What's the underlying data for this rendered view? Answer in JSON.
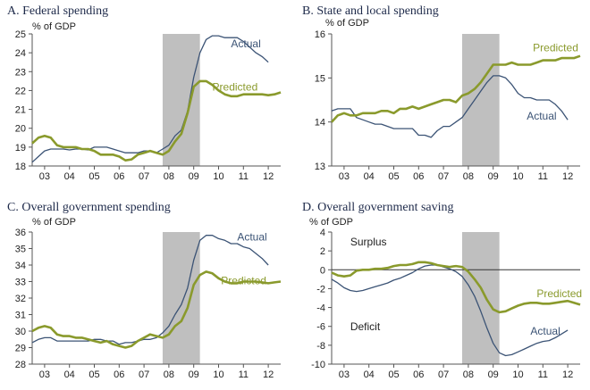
{
  "chart_data": [
    {
      "type": "line",
      "title": "A. Federal spending",
      "ylabel": "% of GDP",
      "ylim": [
        18,
        25
      ],
      "yticks": [
        18,
        19,
        20,
        21,
        22,
        23,
        24,
        25
      ],
      "xlim": [
        2002.5,
        2012.5
      ],
      "xticks": [
        "03",
        "04",
        "05",
        "06",
        "07",
        "08",
        "09",
        "10",
        "11",
        "12"
      ],
      "shade": [
        2007.75,
        2009.25
      ],
      "series": [
        {
          "name": "Actual",
          "color": "#3b5375",
          "label_pos": [
            2010.5,
            24.3
          ],
          "x": [
            2002.5,
            2002.75,
            2003,
            2003.25,
            2003.5,
            2003.75,
            2004,
            2004.25,
            2004.5,
            2004.75,
            2005,
            2005.25,
            2005.5,
            2005.75,
            2006,
            2006.25,
            2006.5,
            2006.75,
            2007,
            2007.25,
            2007.5,
            2007.75,
            2008,
            2008.25,
            2008.5,
            2008.75,
            2009,
            2009.25,
            2009.5,
            2009.75,
            2010,
            2010.25,
            2010.5,
            2010.75,
            2011,
            2011.25,
            2011.5,
            2011.75,
            2012
          ],
          "y": [
            18.2,
            18.5,
            18.8,
            18.9,
            18.9,
            18.9,
            18.85,
            18.9,
            18.9,
            18.85,
            19.0,
            19.0,
            19.0,
            18.9,
            18.8,
            18.7,
            18.7,
            18.7,
            18.8,
            18.8,
            18.7,
            18.9,
            19.1,
            19.6,
            19.9,
            20.9,
            22.7,
            24.0,
            24.7,
            24.9,
            24.9,
            24.8,
            24.8,
            24.8,
            24.6,
            24.3,
            24.0,
            23.8,
            23.5
          ]
        },
        {
          "name": "Predicted",
          "color": "#8a9a2c",
          "label_pos": [
            2009.75,
            22.0
          ],
          "x": [
            2002.5,
            2002.75,
            2003,
            2003.25,
            2003.5,
            2003.75,
            2004,
            2004.25,
            2004.5,
            2004.75,
            2005,
            2005.25,
            2005.5,
            2005.75,
            2006,
            2006.25,
            2006.5,
            2006.75,
            2007,
            2007.25,
            2007.5,
            2007.75,
            2008,
            2008.25,
            2008.5,
            2008.75,
            2009,
            2009.25,
            2009.5,
            2009.75,
            2010,
            2010.25,
            2010.5,
            2010.75,
            2011,
            2011.25,
            2011.5,
            2011.75,
            2012,
            2012.25,
            2012.5
          ],
          "y": [
            19.2,
            19.5,
            19.6,
            19.5,
            19.1,
            19.0,
            19.0,
            19.0,
            18.9,
            18.9,
            18.8,
            18.6,
            18.6,
            18.6,
            18.5,
            18.3,
            18.35,
            18.6,
            18.7,
            18.8,
            18.7,
            18.6,
            18.8,
            19.3,
            19.7,
            20.8,
            22.2,
            22.5,
            22.5,
            22.3,
            22.0,
            21.8,
            21.7,
            21.7,
            21.8,
            21.8,
            21.8,
            21.8,
            21.75,
            21.8,
            21.9
          ]
        }
      ]
    },
    {
      "type": "line",
      "title": "B. State and local spending",
      "ylabel": "% of GDP",
      "ylim": [
        13,
        16
      ],
      "yticks": [
        13,
        14,
        15,
        16
      ],
      "xlim": [
        2002.5,
        2012.5
      ],
      "xticks": [
        "03",
        "04",
        "05",
        "06",
        "07",
        "08",
        "09",
        "10",
        "11",
        "12"
      ],
      "shade": [
        2007.75,
        2009.25
      ],
      "series": [
        {
          "name": "Actual",
          "color": "#3b5375",
          "label_pos": [
            2010.35,
            14.05
          ],
          "x": [
            2002.5,
            2002.75,
            2003,
            2003.25,
            2003.5,
            2003.75,
            2004,
            2004.25,
            2004.5,
            2004.75,
            2005,
            2005.25,
            2005.5,
            2005.75,
            2006,
            2006.25,
            2006.5,
            2006.75,
            2007,
            2007.25,
            2007.5,
            2007.75,
            2008,
            2008.25,
            2008.5,
            2008.75,
            2009,
            2009.25,
            2009.5,
            2009.75,
            2010,
            2010.25,
            2010.5,
            2010.75,
            2011,
            2011.25,
            2011.5,
            2011.75,
            2012
          ],
          "y": [
            14.25,
            14.3,
            14.3,
            14.3,
            14.1,
            14.05,
            14.0,
            13.95,
            13.95,
            13.9,
            13.85,
            13.85,
            13.85,
            13.85,
            13.7,
            13.7,
            13.65,
            13.8,
            13.9,
            13.9,
            14.0,
            14.1,
            14.3,
            14.5,
            14.7,
            14.9,
            15.05,
            15.05,
            15.0,
            14.85,
            14.65,
            14.55,
            14.55,
            14.5,
            14.5,
            14.5,
            14.4,
            14.25,
            14.05
          ]
        },
        {
          "name": "Predicted",
          "color": "#8a9a2c",
          "label_pos": [
            2010.6,
            15.6
          ],
          "x": [
            2002.5,
            2002.75,
            2003,
            2003.25,
            2003.5,
            2003.75,
            2004,
            2004.25,
            2004.5,
            2004.75,
            2005,
            2005.25,
            2005.5,
            2005.75,
            2006,
            2006.25,
            2006.5,
            2006.75,
            2007,
            2007.25,
            2007.5,
            2007.75,
            2008,
            2008.25,
            2008.5,
            2008.75,
            2009,
            2009.25,
            2009.5,
            2009.75,
            2010,
            2010.25,
            2010.5,
            2010.75,
            2011,
            2011.25,
            2011.5,
            2011.75,
            2012,
            2012.25,
            2012.5
          ],
          "y": [
            14.0,
            14.15,
            14.2,
            14.15,
            14.15,
            14.2,
            14.2,
            14.2,
            14.25,
            14.25,
            14.2,
            14.3,
            14.3,
            14.35,
            14.3,
            14.35,
            14.4,
            14.45,
            14.5,
            14.5,
            14.45,
            14.6,
            14.65,
            14.75,
            14.9,
            15.1,
            15.3,
            15.3,
            15.3,
            15.35,
            15.3,
            15.3,
            15.3,
            15.35,
            15.4,
            15.4,
            15.4,
            15.45,
            15.45,
            15.45,
            15.5
          ]
        }
      ]
    },
    {
      "type": "line",
      "title": "C. Overall government spending",
      "ylabel": "% of GDP",
      "ylim": [
        28,
        36
      ],
      "yticks": [
        28,
        29,
        30,
        31,
        32,
        33,
        34,
        35,
        36
      ],
      "xlim": [
        2002.5,
        2012.5
      ],
      "xticks": [
        "03",
        "04",
        "05",
        "06",
        "07",
        "08",
        "09",
        "10",
        "11",
        "12"
      ],
      "shade": [
        2007.75,
        2009.25
      ],
      "series": [
        {
          "name": "Actual",
          "color": "#3b5375",
          "label_pos": [
            2010.75,
            35.5
          ],
          "x": [
            2002.5,
            2002.75,
            2003,
            2003.25,
            2003.5,
            2003.75,
            2004,
            2004.25,
            2004.5,
            2004.75,
            2005,
            2005.25,
            2005.5,
            2005.75,
            2006,
            2006.25,
            2006.5,
            2006.75,
            2007,
            2007.25,
            2007.5,
            2007.75,
            2008,
            2008.25,
            2008.5,
            2008.75,
            2009,
            2009.25,
            2009.5,
            2009.75,
            2010,
            2010.25,
            2010.5,
            2010.75,
            2011,
            2011.25,
            2011.5,
            2011.75,
            2012
          ],
          "y": [
            29.3,
            29.5,
            29.6,
            29.6,
            29.4,
            29.4,
            29.4,
            29.4,
            29.4,
            29.4,
            29.5,
            29.5,
            29.4,
            29.4,
            29.2,
            29.3,
            29.3,
            29.4,
            29.5,
            29.5,
            29.6,
            29.9,
            30.3,
            31.0,
            31.6,
            32.6,
            34.3,
            35.5,
            35.8,
            35.8,
            35.6,
            35.5,
            35.3,
            35.3,
            35.1,
            35.0,
            34.7,
            34.4,
            34.0
          ]
        },
        {
          "name": "Predicted",
          "color": "#8a9a2c",
          "label_pos": [
            2010.1,
            32.85
          ],
          "x": [
            2002.5,
            2002.75,
            2003,
            2003.25,
            2003.5,
            2003.75,
            2004,
            2004.25,
            2004.5,
            2004.75,
            2005,
            2005.25,
            2005.5,
            2005.75,
            2006,
            2006.25,
            2006.5,
            2006.75,
            2007,
            2007.25,
            2007.5,
            2007.75,
            2008,
            2008.25,
            2008.5,
            2008.75,
            2009,
            2009.25,
            2009.5,
            2009.75,
            2010,
            2010.25,
            2010.5,
            2010.75,
            2011,
            2011.25,
            2011.5,
            2011.75,
            2012,
            2012.25,
            2012.5
          ],
          "y": [
            30.0,
            30.2,
            30.3,
            30.2,
            29.8,
            29.7,
            29.7,
            29.6,
            29.6,
            29.5,
            29.4,
            29.3,
            29.4,
            29.2,
            29.1,
            29.0,
            29.1,
            29.4,
            29.6,
            29.8,
            29.7,
            29.6,
            29.8,
            30.3,
            30.6,
            31.4,
            32.8,
            33.4,
            33.6,
            33.5,
            33.2,
            33.0,
            32.9,
            32.9,
            33.0,
            33.0,
            33.0,
            32.95,
            32.9,
            32.95,
            33.0
          ]
        }
      ]
    },
    {
      "type": "line",
      "title": "D. Overall government saving",
      "ylabel": "% of GDP",
      "ylim": [
        -10,
        4
      ],
      "yticks": [
        -10,
        -8,
        -6,
        -4,
        -2,
        0,
        2,
        4
      ],
      "xlim": [
        2002.5,
        2012.5
      ],
      "xticks": [
        "03",
        "04",
        "05",
        "06",
        "07",
        "08",
        "09",
        "10",
        "11",
        "12"
      ],
      "shade": [
        2007.75,
        2009.25
      ],
      "zero_line": true,
      "annotations": [
        {
          "text": "Surplus",
          "pos": [
            2003.25,
            2.6
          ]
        },
        {
          "text": "Deficit",
          "pos": [
            2003.25,
            -6.4
          ]
        }
      ],
      "series": [
        {
          "name": "Actual",
          "color": "#3b5375",
          "label_pos": [
            2010.5,
            -6.9
          ],
          "x": [
            2002.5,
            2002.75,
            2003,
            2003.25,
            2003.5,
            2003.75,
            2004,
            2004.25,
            2004.5,
            2004.75,
            2005,
            2005.25,
            2005.5,
            2005.75,
            2006,
            2006.25,
            2006.5,
            2006.75,
            2007,
            2007.25,
            2007.5,
            2007.75,
            2008,
            2008.25,
            2008.5,
            2008.75,
            2009,
            2009.25,
            2009.5,
            2009.75,
            2010,
            2010.25,
            2010.5,
            2010.75,
            2011,
            2011.25,
            2011.5,
            2011.75,
            2012
          ],
          "y": [
            -1.0,
            -1.4,
            -1.9,
            -2.2,
            -2.3,
            -2.2,
            -2.0,
            -1.8,
            -1.6,
            -1.4,
            -1.1,
            -0.9,
            -0.6,
            -0.3,
            0.1,
            0.4,
            0.5,
            0.5,
            0.3,
            0.1,
            -0.2,
            -0.7,
            -1.6,
            -2.8,
            -4.4,
            -6.2,
            -7.8,
            -8.8,
            -9.1,
            -9.0,
            -8.7,
            -8.4,
            -8.1,
            -7.8,
            -7.6,
            -7.5,
            -7.2,
            -6.8,
            -6.4
          ]
        },
        {
          "name": "Predicted",
          "color": "#8a9a2c",
          "label_pos": [
            2010.75,
            -2.9
          ],
          "x": [
            2002.5,
            2002.75,
            2003,
            2003.25,
            2003.5,
            2003.75,
            2004,
            2004.25,
            2004.5,
            2004.75,
            2005,
            2005.25,
            2005.5,
            2005.75,
            2006,
            2006.25,
            2006.5,
            2006.75,
            2007,
            2007.25,
            2007.5,
            2007.75,
            2008,
            2008.25,
            2008.5,
            2008.75,
            2009,
            2009.25,
            2009.5,
            2009.75,
            2010,
            2010.25,
            2010.5,
            2010.75,
            2011,
            2011.25,
            2011.5,
            2011.75,
            2012,
            2012.25,
            2012.5
          ],
          "y": [
            -0.3,
            -0.6,
            -0.7,
            -0.6,
            -0.1,
            0.0,
            0.0,
            0.1,
            0.1,
            0.2,
            0.4,
            0.5,
            0.5,
            0.6,
            0.8,
            0.8,
            0.7,
            0.5,
            0.4,
            0.3,
            0.4,
            0.3,
            -0.2,
            -1.0,
            -1.9,
            -3.2,
            -4.2,
            -4.5,
            -4.4,
            -4.1,
            -3.8,
            -3.6,
            -3.5,
            -3.5,
            -3.6,
            -3.6,
            -3.5,
            -3.4,
            -3.3,
            -3.5,
            -3.7
          ]
        }
      ]
    }
  ]
}
